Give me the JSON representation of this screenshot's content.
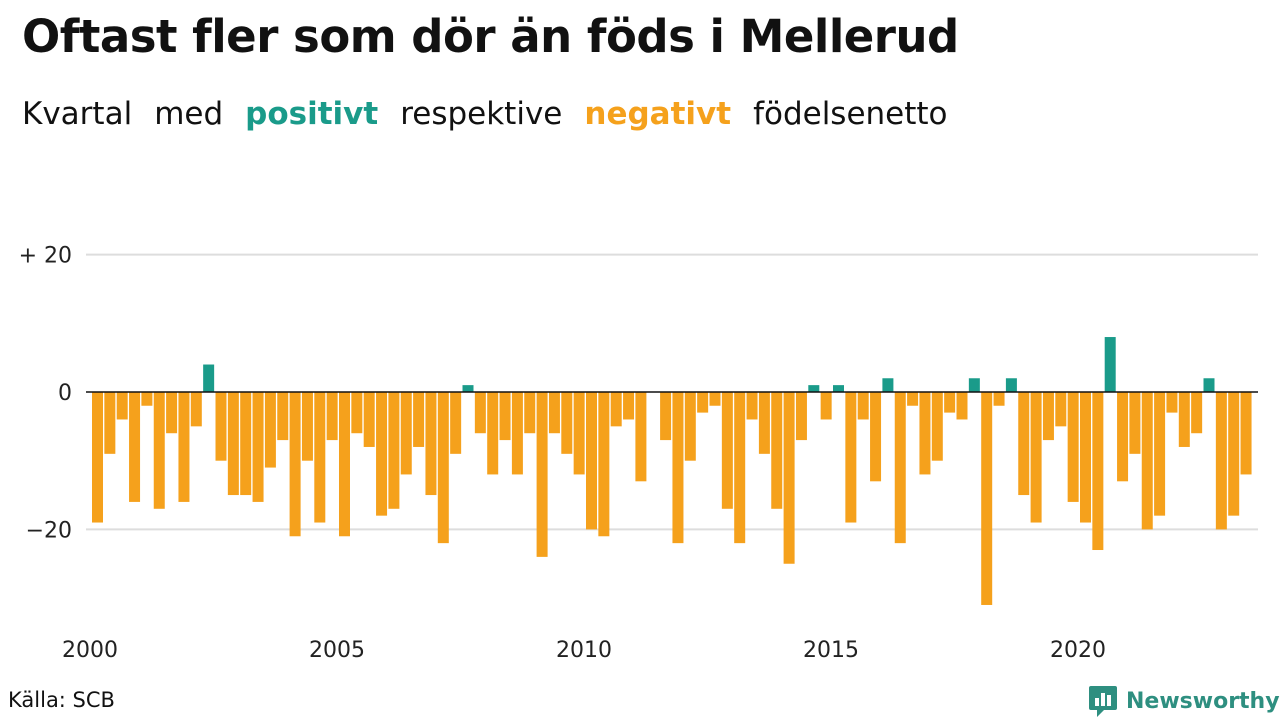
{
  "title": "Oftast fler som dör än föds i Mellerud",
  "subtitle": {
    "w1": "Kvartal",
    "w2": "med",
    "positive": "positivt",
    "w3": "respektive",
    "negative": "negativt",
    "w4": "födelsenetto"
  },
  "colors": {
    "positive": "#1a9b8a",
    "negative": "#f5a11c",
    "grid": "#dddddd",
    "brand": "#2e8f80"
  },
  "source": "Källa: SCB",
  "brand": "Newsworthy",
  "chart_data": {
    "type": "bar",
    "start": "2000 Q1",
    "y_tick_labels": [
      "+ 20",
      "0",
      "−20"
    ],
    "y_ticks": [
      20,
      0,
      -20
    ],
    "x_tick_labels": [
      "2000",
      "2005",
      "2010",
      "2015",
      "2020"
    ],
    "ylim": [
      -32,
      21
    ],
    "values": [
      -19,
      -9,
      -4,
      -16,
      -2,
      -17,
      -6,
      -16,
      -5,
      4,
      -10,
      -15,
      -15,
      -16,
      -11,
      -7,
      -21,
      -10,
      -19,
      -7,
      -21,
      -6,
      -8,
      -18,
      -17,
      -12,
      -8,
      -15,
      -22,
      -9,
      1,
      -6,
      -12,
      -7,
      -12,
      -6,
      -24,
      -6,
      -9,
      -12,
      -20,
      -21,
      -5,
      -4,
      -13,
      0,
      -7,
      -22,
      -10,
      -3,
      -2,
      -17,
      -22,
      -4,
      -9,
      -17,
      -25,
      -7,
      1,
      -4,
      1,
      -19,
      -4,
      -13,
      2,
      -22,
      -2,
      -12,
      -10,
      -3,
      -4,
      2,
      -31,
      -2,
      2,
      -15,
      -19,
      -7,
      -5,
      -16,
      -19,
      -23,
      8,
      -13,
      -9,
      -20,
      -18,
      -3,
      -8,
      -6,
      2,
      -20,
      -18,
      -12
    ]
  }
}
